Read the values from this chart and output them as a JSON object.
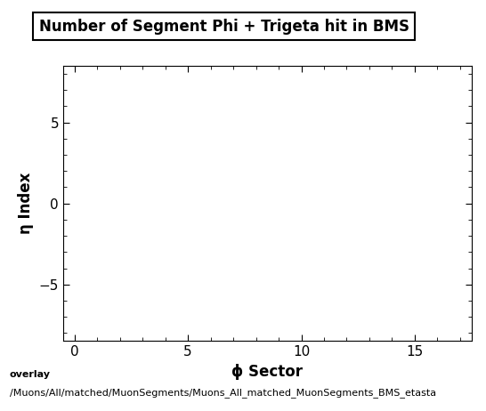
{
  "title": "Number of Segment Phi + Trigeta hit in BMS",
  "xlabel": "ϕ Sector",
  "ylabel": "η Index",
  "xlim": [
    -0.5,
    17.5
  ],
  "ylim": [
    -8.5,
    8.5
  ],
  "xticks": [
    0,
    5,
    10,
    15
  ],
  "yticks": [
    -5,
    0,
    5
  ],
  "background_color": "#ffffff",
  "plot_bg_color": "#ffffff",
  "caption_line1": "overlay",
  "caption_line2": "/Muons/All/matched/MuonSegments/Muons_All_matched_MuonSegments_BMS_etasta",
  "title_fontsize": 12,
  "axis_label_fontsize": 12,
  "tick_fontsize": 11,
  "caption_fontsize": 8
}
